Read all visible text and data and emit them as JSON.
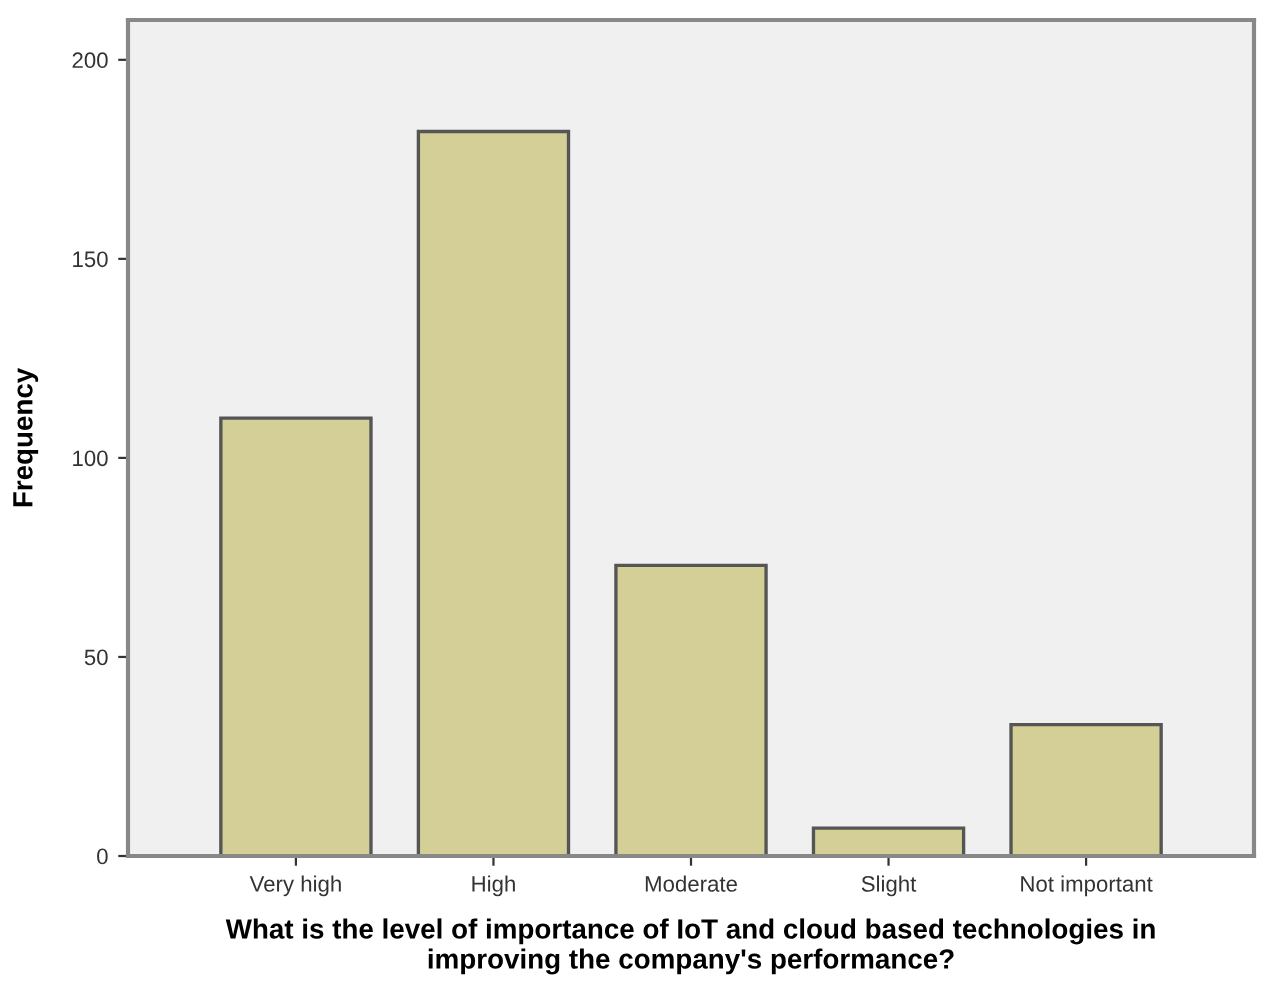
{
  "chart_data": {
    "type": "bar",
    "xlabel": "What is the level of importance of IoT and cloud based technologies in\nimproving the company's performance?",
    "ylabel": "Frequency",
    "categories": [
      "Very high",
      "High",
      "Moderate",
      "Slight",
      "Not important"
    ],
    "values": [
      110,
      182,
      73,
      7,
      33
    ],
    "color": "#d3cf96",
    "ylim": [
      0,
      210
    ],
    "yticks": [
      0,
      50,
      100,
      150,
      200
    ],
    "grid": false
  }
}
